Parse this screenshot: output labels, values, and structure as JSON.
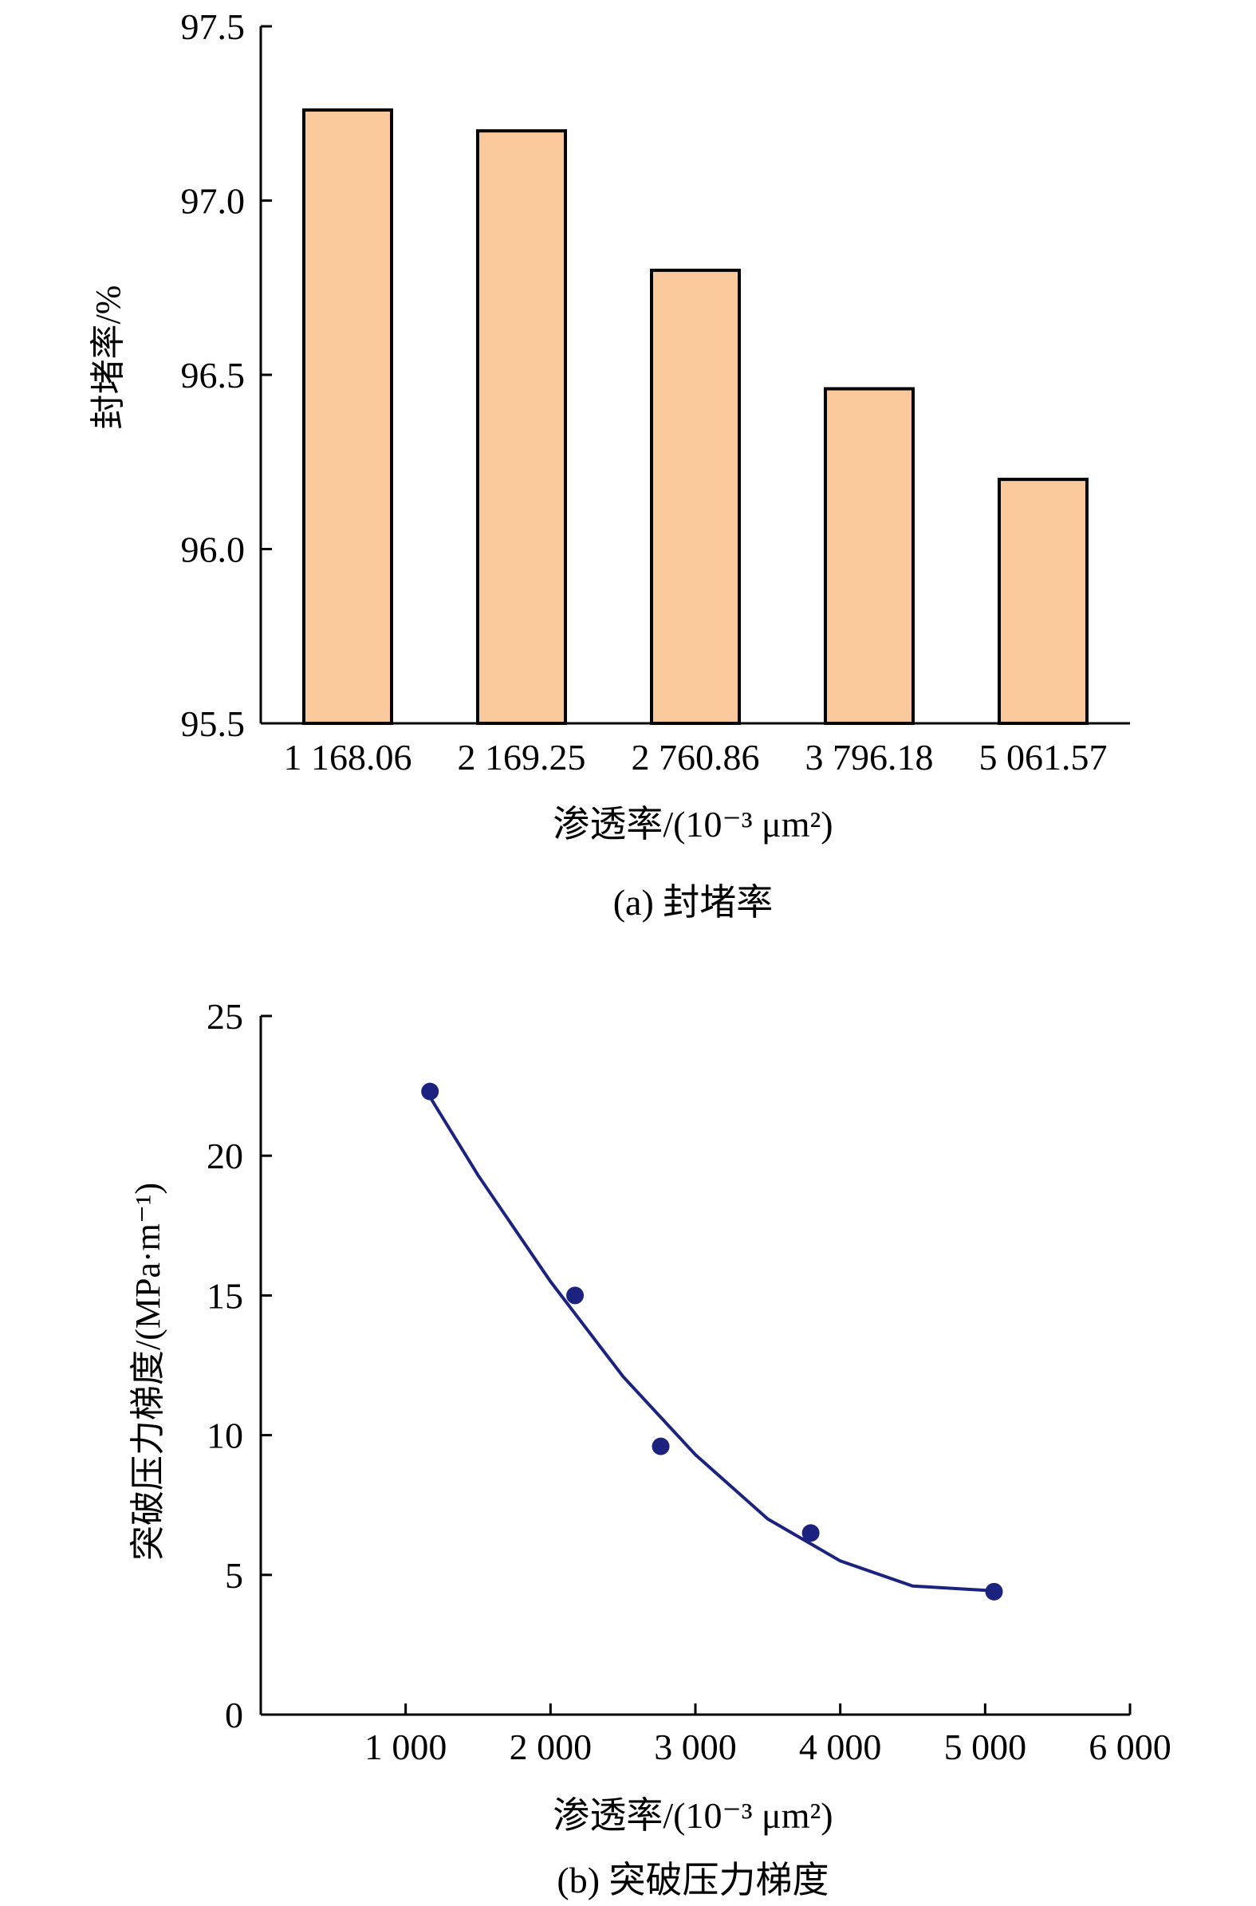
{
  "colors": {
    "bar_fill": "#f9c89b",
    "bar_stroke": "#000000",
    "curve": "#1b237f",
    "point": "#1b237f",
    "axis": "#000000"
  },
  "chart_data": [
    {
      "type": "bar",
      "caption": "(a) 封堵率",
      "xlabel": "渗透率/(10⁻³ μm²)",
      "ylabel": "封堵率/%",
      "categories": [
        "1 168.06",
        "2 169.25",
        "2 760.86",
        "3 796.18",
        "5 061.57"
      ],
      "values": [
        97.26,
        97.2,
        96.8,
        96.46,
        96.2
      ],
      "ylim": [
        95.5,
        97.5
      ],
      "yticks": [
        "95.5",
        "96.0",
        "96.5",
        "97.0",
        "97.5"
      ],
      "grid": false
    },
    {
      "type": "scatter",
      "caption": "(b) 突破压力梯度",
      "xlabel": "渗透率/(10⁻³ μm²)",
      "ylabel": "突破压力梯度/(MPa·m⁻¹)",
      "series": [
        {
          "x": [
            1168.06,
            2169.25,
            2760.86,
            3796.18,
            5061.57
          ],
          "y": [
            22.3,
            15.0,
            9.6,
            6.5,
            4.4
          ]
        }
      ],
      "trend": {
        "kind": "polynomial-fit",
        "x": [
          1168,
          1500,
          2000,
          2500,
          3000,
          3500,
          4000,
          4500,
          5000,
          5060
        ],
        "y": [
          22.1,
          19.3,
          15.5,
          12.1,
          9.3,
          7.0,
          5.5,
          4.6,
          4.45,
          4.45
        ]
      },
      "xlim": [
        0,
        6000
      ],
      "ylim": [
        0,
        25
      ],
      "xticks": [
        "1 000",
        "2 000",
        "3 000",
        "4 000",
        "5 000",
        "6 000"
      ],
      "xtick_values": [
        1000,
        2000,
        3000,
        4000,
        5000,
        6000
      ],
      "yticks": [
        "0",
        "5",
        "10",
        "15",
        "20",
        "25"
      ],
      "ytick_values": [
        0,
        5,
        10,
        15,
        20,
        25
      ],
      "grid": false
    }
  ]
}
